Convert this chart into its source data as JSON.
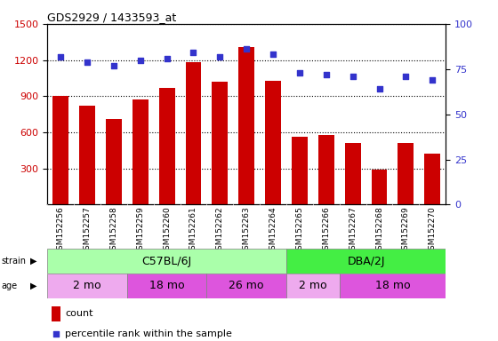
{
  "title": "GDS2929 / 1433593_at",
  "samples": [
    "GSM152256",
    "GSM152257",
    "GSM152258",
    "GSM152259",
    "GSM152260",
    "GSM152261",
    "GSM152262",
    "GSM152263",
    "GSM152264",
    "GSM152265",
    "GSM152266",
    "GSM152267",
    "GSM152268",
    "GSM152269",
    "GSM152270"
  ],
  "counts": [
    900,
    820,
    710,
    870,
    970,
    1180,
    1020,
    1310,
    1030,
    560,
    580,
    510,
    290,
    510,
    420
  ],
  "percentile": [
    82,
    79,
    77,
    80,
    81,
    84,
    82,
    86,
    83,
    73,
    72,
    71,
    64,
    71,
    69
  ],
  "bar_color": "#cc0000",
  "dot_color": "#3333cc",
  "ylim_left": [
    0,
    1500
  ],
  "ylim_right": [
    0,
    100
  ],
  "yticks_left": [
    300,
    600,
    900,
    1200,
    1500
  ],
  "yticks_right": [
    0,
    25,
    50,
    75,
    100
  ],
  "strain_labels": [
    "C57BL/6J",
    "DBA/2J"
  ],
  "strain_ranges": [
    [
      0,
      8
    ],
    [
      9,
      14
    ]
  ],
  "strain_color_light": "#aaffaa",
  "strain_color_dark": "#44ee44",
  "age_labels": [
    "2 mo",
    "18 mo",
    "26 mo",
    "2 mo",
    "18 mo"
  ],
  "age_ranges": [
    [
      0,
      2
    ],
    [
      3,
      5
    ],
    [
      6,
      8
    ],
    [
      9,
      10
    ],
    [
      11,
      14
    ]
  ],
  "age_colors": [
    "#eeaaee",
    "#dd55dd",
    "#dd55dd",
    "#eeaaee",
    "#dd55dd"
  ],
  "legend_count_color": "#cc0000",
  "legend_dot_color": "#3333cc",
  "background_color": "#ffffff",
  "grid_color": "#000000",
  "tick_label_area_color": "#cccccc"
}
